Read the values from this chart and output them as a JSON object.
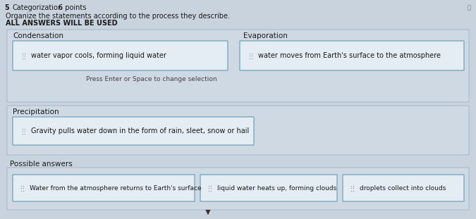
{
  "title_number": "5",
  "title_type": "Categorization",
  "title_points": "6 points",
  "instruction_line1": "Organize the statements according to the process they describe.",
  "instruction_line2": "ALL ANSWERS WILL BE USED",
  "category1_label": "Condensation",
  "category2_label": "Evaporation",
  "category1_item": "water vapor cools, forming liquid water",
  "category2_item": "water moves from Earth's surface to the atmosphere",
  "press_enter_text": "Press Enter or Space to change selection",
  "category3_label": "Precipitation",
  "category3_item": "Gravity pulls water down in the form of rain, sleet, snow or hail",
  "possible_answers_label": "Possible answers",
  "possible_answer1": "Water from the atmosphere returns to Earth's surface",
  "possible_answer2": "liquid water heats up, forming clouds",
  "possible_answer3": "droplets collect into clouds",
  "bg_color": "#cdd8e3",
  "outer_box_bg": "#cfd9e4",
  "outer_box_edge": "#a8bccb",
  "inner_box_fill": "#e4ecf4",
  "inner_box_edge": "#7aaabf",
  "text_color": "#1a1a1a",
  "label_color": "#1a1a1a",
  "fig_bg": "#c8d3de"
}
